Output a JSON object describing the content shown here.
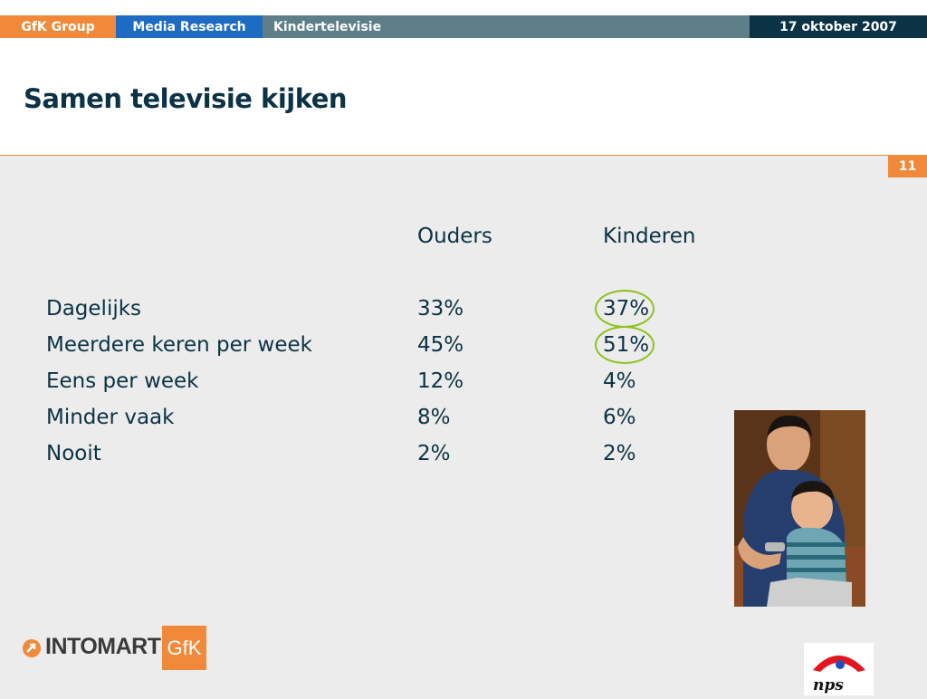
{
  "header": {
    "nav": [
      "GfK Group",
      "Media Research",
      "Kindertelevisie"
    ],
    "date": "17 oktober 2007"
  },
  "slide": {
    "title": "Samen televisie kijken",
    "page_number": "11"
  },
  "table": {
    "columns": [
      "Ouders",
      "Kinderen"
    ],
    "rows": [
      {
        "label": "Dagelijks",
        "ouders": "33%",
        "kinderen": "37%",
        "highlighted": true
      },
      {
        "label": "Meerdere keren per week",
        "ouders": "45%",
        "kinderen": "51%",
        "highlighted": true
      },
      {
        "label": "Eens per week",
        "ouders": "12%",
        "kinderen": "4%",
        "highlighted": false
      },
      {
        "label": "Minder vaak",
        "ouders": "8%",
        "kinderen": "6%",
        "highlighted": false
      },
      {
        "label": "Nooit",
        "ouders": "2%",
        "kinderen": "2%",
        "highlighted": false
      }
    ]
  },
  "footer": {
    "logo_main": "INTOMART",
    "logo_badge": "GfK",
    "partner_logo": "nps"
  },
  "colors": {
    "accent_orange": "#f08a3a",
    "nav_blue": "#1e6bc4",
    "nav_teal": "#5e7f89",
    "navy": "#0b3245",
    "highlight_green": "#8dc21f"
  },
  "icons": [
    "intomart-arrow-icon",
    "father-son-photo",
    "nps-logo"
  ]
}
